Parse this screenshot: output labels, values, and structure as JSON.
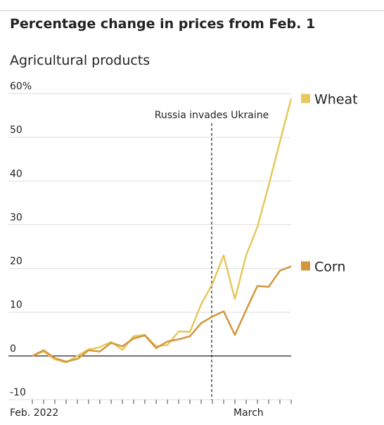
{
  "chart_data": {
    "type": "line",
    "title": "Percentage change in prices from Feb. 1",
    "subtitle": "Agricultural products",
    "annotation": "Russia invades Ukraine",
    "categories": [
      "Feb. 2022",
      null,
      null,
      null,
      null,
      null,
      null,
      null,
      null,
      null,
      null,
      null,
      null,
      null,
      null,
      null,
      null,
      null,
      null,
      "March",
      null,
      null,
      null,
      null
    ],
    "series": [
      {
        "name": "Wheat",
        "color": "#e6c85c",
        "values": [
          0,
          1,
          -0.8,
          -1.5,
          0,
          1.5,
          2,
          3.2,
          1.4,
          4.5,
          4.8,
          2.2,
          2.5,
          5.6,
          5.5,
          11.8,
          16.5,
          23,
          13,
          23,
          29.5,
          39,
          49,
          58.8
        ]
      },
      {
        "name": "Corn",
        "color": "#d4963c",
        "values": [
          0,
          1.3,
          -0.5,
          -1.3,
          -0.7,
          1.3,
          1,
          3,
          2.2,
          4,
          4.7,
          1.8,
          3.3,
          3.8,
          4.5,
          7.5,
          9,
          10.2,
          4.8,
          10.5,
          16,
          15.8,
          19.5,
          20.5
        ]
      }
    ],
    "ylim": [
      -10,
      60
    ],
    "yticks": [
      -10,
      0,
      10,
      20,
      30,
      40,
      50,
      {
        "value": 60,
        "label": "60%"
      }
    ],
    "grid": true
  }
}
